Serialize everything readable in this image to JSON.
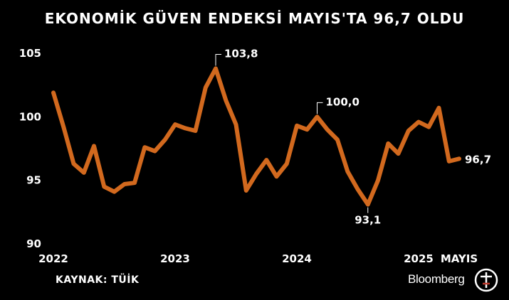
{
  "title": "EKONOMİK GÜVEN ENDEKSİ MAYIS'TA 96,7 OLDU",
  "source": "KAYNAK: TÜİK",
  "brand": "Bloomberg",
  "brand_mark_letters": "HT",
  "colors": {
    "line": "#d2691e",
    "background": "#000000",
    "text": "#ffffff"
  },
  "chart_data": {
    "type": "line",
    "title": "EKONOMİK GÜVEN ENDEKSİ MAYIS'TA 96,7 OLDU",
    "xlabel": "",
    "ylabel": "",
    "ylim": [
      90,
      106
    ],
    "yticks": [
      90,
      95,
      100,
      105
    ],
    "xticks": [
      {
        "label": "2022",
        "index": 0
      },
      {
        "label": "2023",
        "index": 12
      },
      {
        "label": "2024",
        "index": 24
      },
      {
        "label": "2025",
        "index": 36
      },
      {
        "label": "MAYIS",
        "index": 40
      }
    ],
    "x": [
      "2022-01",
      "2022-02",
      "2022-03",
      "2022-04",
      "2022-05",
      "2022-06",
      "2022-07",
      "2022-08",
      "2022-09",
      "2022-10",
      "2022-11",
      "2022-12",
      "2023-01",
      "2023-02",
      "2023-03",
      "2023-04",
      "2023-05",
      "2023-06",
      "2023-07",
      "2023-08",
      "2023-09",
      "2023-10",
      "2023-11",
      "2023-12",
      "2024-01",
      "2024-02",
      "2024-03",
      "2024-04",
      "2024-05",
      "2024-06",
      "2024-07",
      "2024-08",
      "2024-09",
      "2024-10",
      "2024-11",
      "2024-12",
      "2025-01",
      "2025-02",
      "2025-03",
      "2025-04",
      "2025-05"
    ],
    "series": [
      {
        "values": [
          101.9,
          99.2,
          96.3,
          95.6,
          97.7,
          94.5,
          94.1,
          94.7,
          94.8,
          97.6,
          97.3,
          98.2,
          99.4,
          99.1,
          98.9,
          102.3,
          103.8,
          101.3,
          99.4,
          94.2,
          95.5,
          96.6,
          95.3,
          96.3,
          99.3,
          99.0,
          100.0,
          99.0,
          98.2,
          95.7,
          94.3,
          93.1,
          95.0,
          97.9,
          97.1,
          98.9,
          99.6,
          99.2,
          100.7,
          96.5,
          96.7
        ]
      }
    ],
    "annotations": [
      {
        "label": "103,8",
        "index": 16
      },
      {
        "label": "100,0",
        "index": 26
      },
      {
        "label": "93,1",
        "index": 31
      },
      {
        "label": "96,7",
        "index": 40
      }
    ]
  }
}
